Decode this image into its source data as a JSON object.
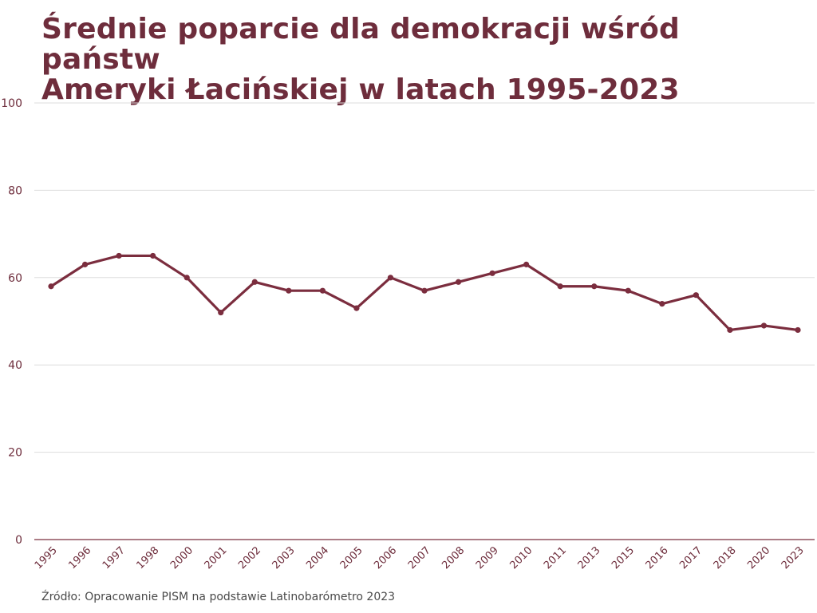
{
  "title": {
    "line1": "Średnie poparcie dla demokracji wśród państw",
    "line2": "Ameryki Łacińskiej w latach 1995-2023"
  },
  "source": "Źródło: Opracowanie PISM na podstawie Latinobarómetro 2023",
  "colors": {
    "series": "#7b2d3e",
    "title": "#6e2d3c",
    "grid": "#dddddd",
    "axis": "#7b2d3e",
    "tick_text": "#6e2d3c"
  },
  "chart_data": {
    "type": "line",
    "title": "Średnie poparcie dla demokracji wśród państw Ameryki Łacińskiej w latach 1995-2023",
    "xlabel": "",
    "ylabel": "",
    "categories": [
      "1995",
      "1996",
      "1997",
      "1998",
      "2000",
      "2001",
      "2002",
      "2003",
      "2004",
      "2005",
      "2006",
      "2007",
      "2008",
      "2009",
      "2010",
      "2011",
      "2013",
      "2015",
      "2016",
      "2017",
      "2018",
      "2020",
      "2023"
    ],
    "values": [
      58,
      63,
      65,
      65,
      60,
      52,
      59,
      57,
      57,
      53,
      60,
      57,
      59,
      61,
      63,
      58,
      58,
      57,
      54,
      56,
      48,
      49,
      48
    ],
    "ylim": [
      0,
      100
    ],
    "yticks": [
      0,
      20,
      40,
      60,
      80,
      100
    ],
    "grid": true,
    "legend": "none",
    "markers": true
  }
}
